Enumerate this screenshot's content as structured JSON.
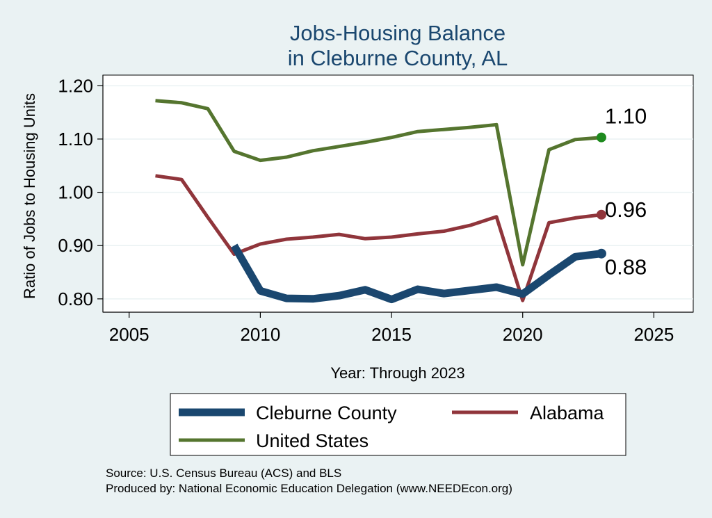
{
  "chart_data": {
    "type": "line",
    "title": [
      "Jobs-Housing Balance",
      "in Cleburne County, AL"
    ],
    "xlabel": "Year: Through 2023",
    "ylabel": "Ratio of Jobs to Housing Units",
    "xlim": [
      2004,
      2026.5
    ],
    "ylim": [
      0.775,
      1.22
    ],
    "xticks": [
      2005,
      2010,
      2015,
      2020,
      2025
    ],
    "xtick_labels": [
      "2005",
      "2010",
      "2015",
      "2020",
      "2025"
    ],
    "yticks": [
      0.8,
      0.9,
      1.0,
      1.1,
      1.2
    ],
    "ytick_labels": [
      "0.80",
      "0.90",
      "1.00",
      "1.10",
      "1.20"
    ],
    "grid": true,
    "series": [
      {
        "name": "Cleburne County",
        "color": "#1a476f",
        "x": [
          2009,
          2010,
          2011,
          2012,
          2013,
          2014,
          2015,
          2016,
          2017,
          2018,
          2019,
          2020,
          2021,
          2022,
          2023
        ],
        "values": [
          0.9,
          0.815,
          0.801,
          0.8,
          0.806,
          0.817,
          0.799,
          0.818,
          0.81,
          0.816,
          0.822,
          0.809,
          0.845,
          0.879,
          0.885
        ],
        "end_label": "0.88"
      },
      {
        "name": "Alabama",
        "color": "#90353b",
        "x": [
          2006,
          2007,
          2008,
          2009,
          2010,
          2011,
          2012,
          2013,
          2014,
          2015,
          2016,
          2017,
          2018,
          2019,
          2020,
          2021,
          2022,
          2023
        ],
        "values": [
          1.031,
          1.024,
          0.953,
          0.884,
          0.903,
          0.912,
          0.916,
          0.921,
          0.913,
          0.916,
          0.922,
          0.927,
          0.938,
          0.954,
          0.797,
          0.943,
          0.952,
          0.958
        ],
        "end_label": "0.96"
      },
      {
        "name": "United States",
        "color": "#55752f",
        "x": [
          2006,
          2007,
          2008,
          2009,
          2010,
          2011,
          2012,
          2013,
          2014,
          2015,
          2016,
          2017,
          2018,
          2019,
          2020,
          2021,
          2022,
          2023
        ],
        "values": [
          1.172,
          1.168,
          1.157,
          1.077,
          1.06,
          1.066,
          1.078,
          1.086,
          1.094,
          1.103,
          1.114,
          1.118,
          1.122,
          1.127,
          0.864,
          1.08,
          1.099,
          1.103
        ],
        "end_label": "1.10"
      }
    ],
    "legend": {
      "placement": "bottom",
      "entries": [
        "Cleburne County",
        "Alabama",
        "United States"
      ]
    },
    "notes": [
      "Source: U.S. Census Bureau (ACS) and BLS",
      "Produced by: National Economic Education Delegation (www.NEEDEcon.org)"
    ]
  },
  "colors": {
    "background": "#eaf2f3",
    "plot_background": "#ffffff",
    "title": "#1a476f",
    "end_marker_us": "#1e8a1e"
  }
}
